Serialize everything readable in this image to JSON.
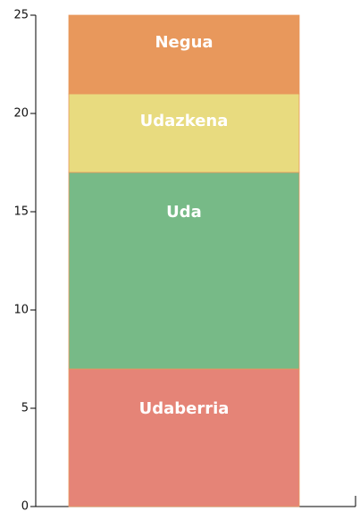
{
  "chart_data": {
    "type": "stacked_bar",
    "categories": [
      null
    ],
    "series": [
      {
        "name": "Udaberria",
        "color": "#e58477",
        "values": [
          7
        ]
      },
      {
        "name": "Uda",
        "color": "#77ba87",
        "values": [
          10
        ]
      },
      {
        "name": "Udazkena",
        "color": "#e8db7f",
        "values": [
          4
        ]
      },
      {
        "name": "Negua",
        "color": "#e8985c",
        "values": [
          4
        ]
      }
    ],
    "ylim": [
      0,
      25
    ],
    "yticks": [
      0,
      5,
      10,
      15,
      20,
      25
    ]
  }
}
